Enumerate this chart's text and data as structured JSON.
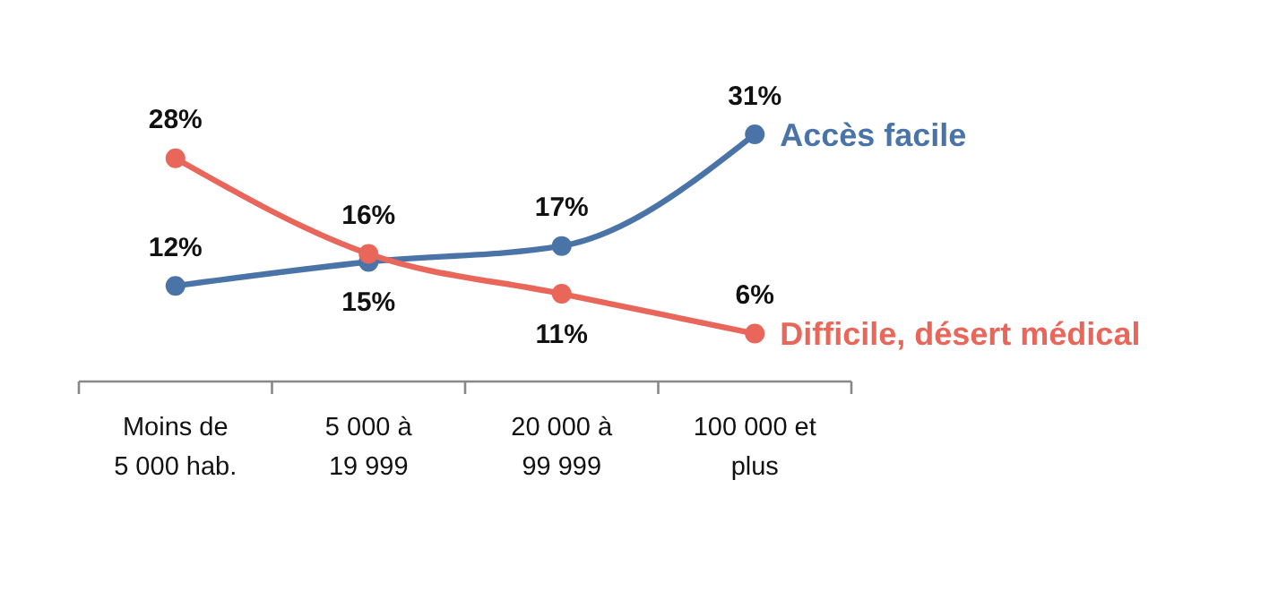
{
  "chart_data": {
    "type": "line",
    "categories": [
      "Moins de\n5 000 hab.",
      "5 000 à\n19 999",
      "20 000 à\n99 999",
      "100 000 et\nplus"
    ],
    "series": [
      {
        "name": "Accès facile",
        "color": "#4a74a8",
        "values": [
          12,
          15,
          17,
          31
        ],
        "value_labels": [
          "12%",
          "15%",
          "17%",
          "31%"
        ]
      },
      {
        "name": "Difficile, désert médical",
        "color": "#e8665a",
        "values": [
          28,
          16,
          11,
          6
        ],
        "value_labels": [
          "28%",
          "16%",
          "11%",
          "6%"
        ]
      }
    ],
    "marker": "circle",
    "line_style": "solid"
  }
}
